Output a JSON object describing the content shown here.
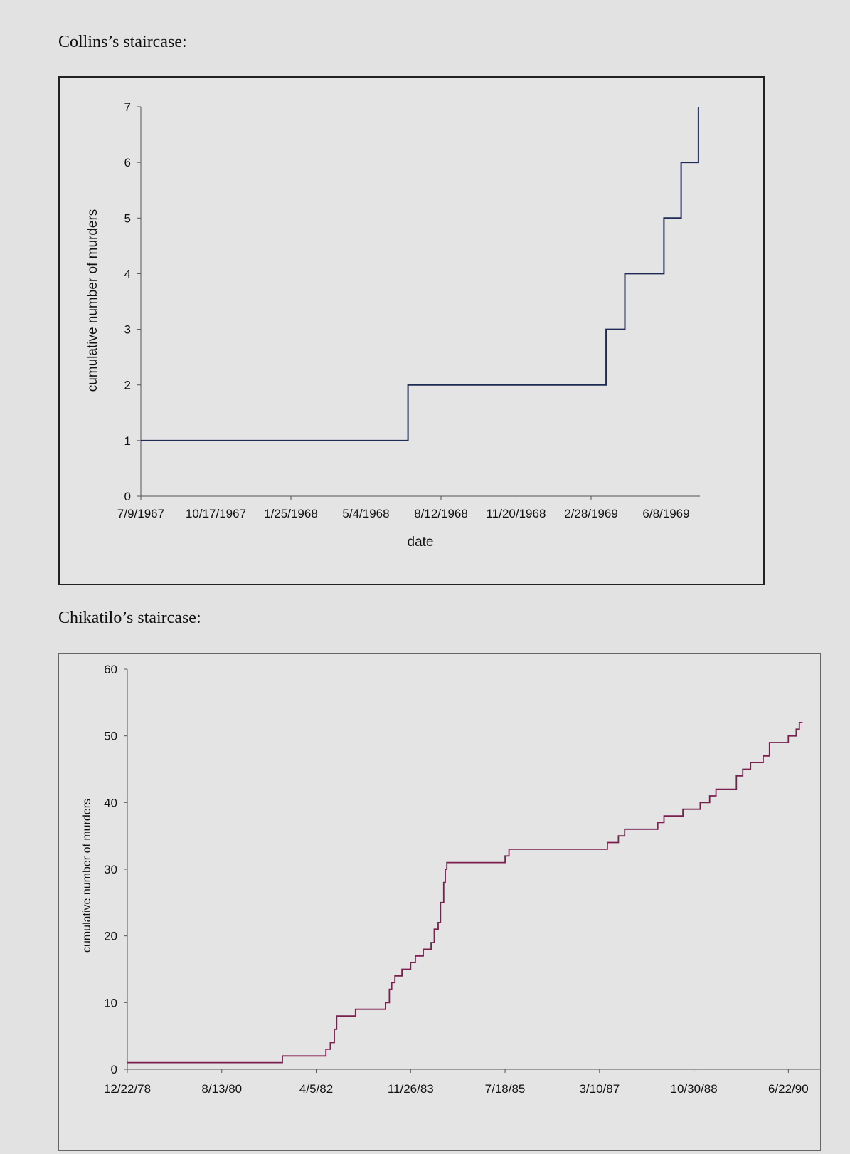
{
  "headings": {
    "collins": "Collins’s staircase:",
    "chikatilo": "Chikatilo’s staircase:"
  },
  "colors": {
    "collins_line": "#1f2a55",
    "chikatilo_line": "#7a1f4e",
    "axis": "#555555"
  },
  "chart_data": [
    {
      "type": "line",
      "step": true,
      "title": "Collins’s staircase:",
      "xlabel": "date",
      "ylabel": "cumulative number of murders",
      "x_ticks": [
        "7/9/1967",
        "10/17/1967",
        "1/25/1968",
        "5/4/1968",
        "8/12/1968",
        "11/20/1968",
        "2/28/1969",
        "6/8/1969"
      ],
      "x_tick_values": [
        0,
        100,
        200,
        300,
        400,
        500,
        600,
        700
      ],
      "xlim": [
        0,
        745
      ],
      "ylim": [
        0,
        7
      ],
      "y_ticks": [
        0,
        1,
        2,
        3,
        4,
        5,
        6,
        7
      ],
      "series": [
        {
          "name": "Collins",
          "x": [
            0,
            356,
            620,
            645,
            697,
            720,
            743
          ],
          "y": [
            1,
            2,
            3,
            4,
            5,
            6,
            7
          ]
        }
      ]
    },
    {
      "type": "line",
      "step": true,
      "title": "Chikatilo’s staircase:",
      "xlabel": "",
      "ylabel": "cumulative number of murders",
      "x_ticks": [
        "12/22/78",
        "8/13/80",
        "4/5/82",
        "11/26/83",
        "7/18/85",
        "3/10/87",
        "10/30/88",
        "6/22/90"
      ],
      "x_tick_values": [
        0,
        600,
        1200,
        1800,
        2400,
        3000,
        3600,
        4200
      ],
      "xlim": [
        0,
        4560
      ],
      "ylim": [
        0,
        60
      ],
      "y_ticks": [
        0,
        10,
        20,
        30,
        40,
        50,
        60
      ],
      "series": [
        {
          "name": "Chikatilo",
          "x": [
            0,
            985,
            1262,
            1290,
            1315,
            1330,
            1352,
            1450,
            1640,
            1665,
            1680,
            1700,
            1745,
            1800,
            1830,
            1880,
            1930,
            1950,
            1975,
            1990,
            2010,
            2020,
            2030,
            2045,
            2400,
            2425,
            3050,
            3120,
            3160,
            3370,
            3410,
            3530,
            3640,
            3700,
            3740,
            3870,
            3910,
            3960,
            4040,
            4080,
            4200,
            4250,
            4270,
            4290
          ],
          "y": [
            1,
            2,
            3,
            4,
            6,
            8,
            8,
            9,
            10,
            12,
            13,
            14,
            15,
            16,
            17,
            18,
            19,
            21,
            22,
            25,
            28,
            30,
            31,
            31,
            32,
            33,
            34,
            35,
            36,
            37,
            38,
            39,
            40,
            41,
            42,
            44,
            45,
            46,
            47,
            49,
            50,
            51,
            52,
            52
          ]
        }
      ]
    }
  ]
}
